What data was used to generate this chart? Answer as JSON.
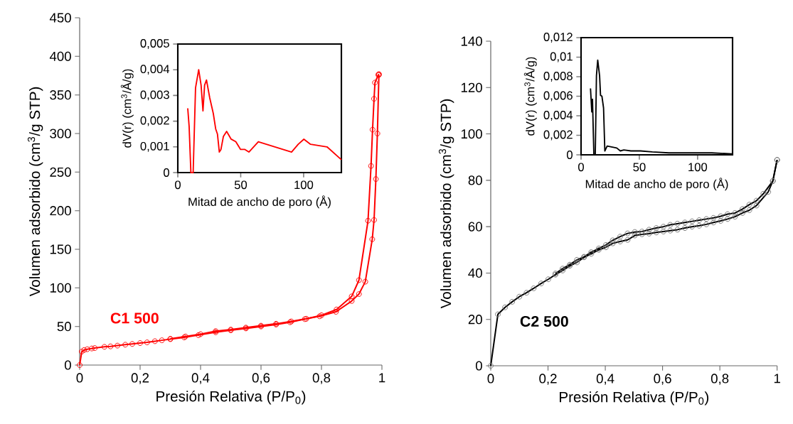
{
  "chart_data": [
    {
      "type": "line",
      "xlabel": "Presión Relativa (P/P$_{0}$)",
      "ylabel": "Volumen adsorbido (cm$^{3}$/g  STP)",
      "xlim": [
        0,
        1
      ],
      "ylim": [
        0,
        450
      ],
      "xticks": [
        0,
        {
          "value": 0.2,
          "label": "0,2"
        },
        {
          "value": 0.4,
          "label": "0,4"
        },
        {
          "value": 0.6,
          "label": "0,6"
        },
        {
          "value": 0.8,
          "label": "0,8"
        },
        1
      ],
      "yticks": [
        0,
        50,
        100,
        150,
        200,
        250,
        300,
        350,
        400,
        450
      ],
      "marker": "circle",
      "annotations": [
        "C1 500"
      ],
      "series": [
        {
          "color": "#ff0000",
          "x": [
            0,
            0.007,
            0.015,
            0.025,
            0.04,
            0.05,
            0.082,
            0.102,
            0.125,
            0.151,
            0.174,
            0.2,
            0.223,
            0.249,
            0.272,
            0.3,
            0.346,
            0.393,
            0.45,
            0.5,
            0.55,
            0.6,
            0.65,
            0.696,
            0.745,
            0.794,
            0.848,
            0.9,
            0.924,
            0.945,
            0.968,
            0.974,
            0.98,
            0.985,
            0.99
          ],
          "values": [
            0,
            17.5,
            19.5,
            20.5,
            21.5,
            22,
            23.6,
            24.2,
            25.2,
            26.4,
            27.3,
            28.5,
            29.4,
            30.9,
            32.1,
            33.6,
            35.8,
            38.8,
            42.5,
            45,
            47.5,
            50,
            52.5,
            55.5,
            59.5,
            63.2,
            69,
            83,
            92,
            108,
            163,
            188,
            241,
            300,
            376
          ]
        },
        {
          "color": "#ff0000",
          "x": [
            0.99,
            0.988,
            0.977,
            0.974,
            0.969,
            0.964,
            0.954,
            0.924,
            0.9,
            0.85,
            0.8,
            0.75,
            0.7,
            0.65,
            0.6,
            0.55,
            0.5,
            0.45,
            0.4,
            0.35,
            0.3
          ],
          "values": [
            377,
            376,
            366,
            345,
            305,
            258,
            187,
            110,
            89,
            72,
            64.5,
            60,
            56.5,
            53.5,
            51,
            48.5,
            46,
            44,
            40,
            37,
            34
          ]
        }
      ]
    },
    {
      "type": "line",
      "xlabel": "Mitad de ancho de poro (Å)",
      "ylabel": "dV(r) (cm$^{3}$/Å/g)",
      "xlim": [
        0,
        130
      ],
      "ylim": [
        0,
        0.005
      ],
      "xticks": [
        0,
        50,
        100
      ],
      "yticks": [
        0,
        {
          "value": 0.001,
          "label": "0,001"
        },
        {
          "value": 0.002,
          "label": "0,002"
        },
        {
          "value": 0.003,
          "label": "0,003"
        },
        {
          "value": 0.004,
          "label": "0,004"
        },
        {
          "value": 0.005,
          "label": "0,005"
        }
      ],
      "marker": "none",
      "series": [
        {
          "color": "#ff0000",
          "x": [
            7.9,
            9.0,
            10.4,
            12.2,
            14.1,
            16.6,
            18.5,
            20,
            21.3,
            22.8,
            25.4,
            28.2,
            30.1,
            31.5,
            33,
            34.3,
            36.2,
            38.8,
            42.4,
            46.1,
            49.9,
            53.3,
            56.5,
            64,
            77.2,
            90.4,
            95.7,
            100.2,
            105.5,
            118.6,
            130
          ],
          "values": [
            0.0025,
            0.0018,
            0,
            0,
            0.0033,
            0.004,
            0.0034,
            0.0024,
            0.0034,
            0.0036,
            0.0029,
            0.0023,
            0.0017,
            0.0015,
            0.0008,
            0.0009,
            0.0014,
            0.0016,
            0.0013,
            0.0012,
            0.0009,
            0.0009,
            0.0008,
            0.0012,
            0.001,
            0.0008,
            0.0011,
            0.0013,
            0.0011,
            0.001,
            0.0005
          ]
        }
      ]
    },
    {
      "type": "line",
      "xlabel": "Presión Relativa (P/P$_{0}$)",
      "ylabel": "Volumen adsorbido (cm$^{3}$/g  STP)",
      "xlim": [
        0,
        1
      ],
      "ylim": [
        0,
        140
      ],
      "xticks": [
        0,
        {
          "value": 0.2,
          "label": "0,2"
        },
        {
          "value": 0.4,
          "label": "0,4"
        },
        {
          "value": 0.6,
          "label": "0,6"
        },
        {
          "value": 0.8,
          "label": "0,8"
        },
        1
      ],
      "yticks": [
        0,
        20,
        40,
        60,
        80,
        100,
        120,
        140
      ],
      "marker": "circle",
      "annotations": [
        "C2 500"
      ],
      "series": [
        {
          "color": "#000000",
          "x": [
            0,
            0.025,
            0.05,
            0.075,
            0.1,
            0.125,
            0.15,
            0.176,
            0.201,
            0.226,
            0.251,
            0.276,
            0.301,
            0.326,
            0.351,
            0.377,
            0.402,
            0.426,
            0.452,
            0.478,
            0.503,
            0.528,
            0.553,
            0.578,
            0.603,
            0.627,
            0.652,
            0.678,
            0.703,
            0.728,
            0.753,
            0.778,
            0.803,
            0.827,
            0.853,
            0.879,
            0.903,
            0.928,
            0.969,
            0.985,
            1.0
          ],
          "values": [
            0,
            22.2,
            25.2,
            27.6,
            29.8,
            31.5,
            33.4,
            35.5,
            37.3,
            39.3,
            41.1,
            43.1,
            44.6,
            46.8,
            48.3,
            50,
            51.1,
            52.8,
            53.6,
            54.3,
            56.2,
            56.7,
            57,
            57.5,
            57.9,
            58.3,
            58.7,
            59.4,
            60,
            60.4,
            61,
            61.8,
            62.5,
            63.3,
            64.3,
            65.9,
            67.1,
            69.1,
            75,
            79.7,
            88.8
          ]
        },
        {
          "color": "#000000",
          "x": [
            1.0,
            0.985,
            0.952,
            0.928,
            0.903,
            0.879,
            0.853,
            0.827,
            0.803,
            0.778,
            0.753,
            0.728,
            0.703,
            0.678,
            0.652,
            0.627,
            0.603,
            0.578,
            0.553,
            0.528,
            0.503,
            0.478,
            0.452,
            0.426,
            0.402,
            0.377,
            0.351,
            0.326,
            0.301,
            0.276,
            0.251,
            0.226
          ],
          "values": [
            88.8,
            79.7,
            74.2,
            71.2,
            69.5,
            67.6,
            65.9,
            65.4,
            64.5,
            63.8,
            63.3,
            62.8,
            62.3,
            61.8,
            61.3,
            60.8,
            60,
            59.4,
            58.7,
            57.9,
            57.7,
            57.1,
            55.7,
            54.1,
            52.1,
            50.6,
            49,
            47,
            45.7,
            43.6,
            41.9,
            39.8
          ]
        }
      ]
    },
    {
      "type": "line",
      "xlabel": "Mitad de ancho de poro (Å)",
      "ylabel": "dV(r) (cm$^{3}$/Å/g)",
      "xlim": [
        0,
        130
      ],
      "ylim": [
        0,
        0.012
      ],
      "xticks": [
        0,
        50,
        100
      ],
      "yticks": [
        0,
        {
          "value": 0.002,
          "label": "0,002"
        },
        {
          "value": 0.004,
          "label": "0,004"
        },
        {
          "value": 0.006,
          "label": "0,006"
        },
        {
          "value": 0.008,
          "label": "0,008"
        },
        {
          "value": 0.01,
          "label": "0,01"
        },
        {
          "value": 0.012,
          "label": "0,012"
        }
      ],
      "marker": "none",
      "series": [
        {
          "color": "#000000",
          "x": [
            8.1,
            9.2,
            9.8,
            11,
            12.2,
            13.2,
            14.3,
            15.9,
            16.7,
            17.9,
            19.3,
            20.4,
            22.4,
            26.5,
            30.6,
            33.7,
            36.7,
            42.8,
            51,
            61.2,
            75.4,
            91.8,
            97.9,
            112.2,
            129.5
          ],
          "values": [
            0.0068,
            0.0044,
            0.0057,
            0,
            0,
            0.0081,
            0.0097,
            0.0081,
            0.0061,
            0.006,
            0.0048,
            0.0004,
            0.0009,
            0.0008,
            0.0007,
            0.0004,
            0.0005,
            0.0004,
            0.0004,
            0.0003,
            0.0002,
            0.0002,
            0.0002,
            0.0002,
            0.0001
          ]
        }
      ]
    }
  ]
}
